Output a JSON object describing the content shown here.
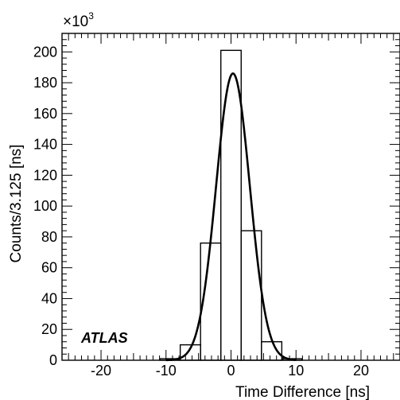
{
  "chart_data": {
    "type": "bar",
    "xlabel": "Time Difference [ns]",
    "ylabel": "Counts/3.125 [ns]",
    "y_multiplier": {
      "base": "×10",
      "exponent": "3"
    },
    "xlim": [
      -26,
      26
    ],
    "ylim": [
      0,
      212
    ],
    "x_ticks": [
      -20,
      -10,
      0,
      10,
      20
    ],
    "y_ticks": [
      0,
      20,
      40,
      60,
      80,
      100,
      120,
      140,
      160,
      180,
      200
    ],
    "bin_width": 3.125,
    "bins": [
      {
        "x0": -10.9375,
        "x1": -7.8125,
        "value": 1
      },
      {
        "x0": -7.8125,
        "x1": -4.6875,
        "value": 10
      },
      {
        "x0": -4.6875,
        "x1": -1.5625,
        "value": 76
      },
      {
        "x0": -1.5625,
        "x1": 1.5625,
        "value": 201
      },
      {
        "x0": 1.5625,
        "x1": 4.6875,
        "value": 84
      },
      {
        "x0": 4.6875,
        "x1": 7.8125,
        "value": 12
      },
      {
        "x0": 7.8125,
        "x1": 10.9375,
        "value": 1
      }
    ],
    "fit": {
      "type": "gaussian",
      "amplitude": 186,
      "mean": 0.3,
      "sigma": 2.6,
      "range": [
        -10,
        10
      ]
    },
    "annotation": "ATLAS"
  }
}
